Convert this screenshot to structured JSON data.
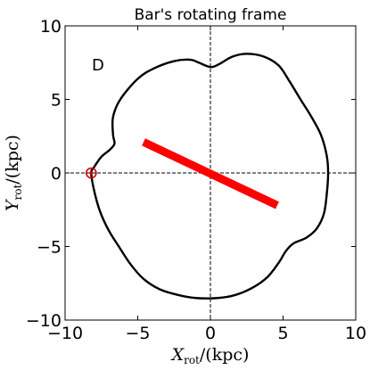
{
  "chart_data": {
    "type": "line",
    "title": "Bar's rotating frame",
    "panel_label": "D",
    "xlabel": {
      "symbol": "X",
      "subscript": "rot",
      "unit": "/(kpc)"
    },
    "ylabel": {
      "symbol": "Y",
      "subscript": "rot",
      "unit": "/(kpc)"
    },
    "xlim": [
      -10,
      10
    ],
    "ylim": [
      -10,
      10
    ],
    "xticks": [
      -10,
      -5,
      0,
      5,
      10
    ],
    "yticks": [
      -10,
      -5,
      0,
      5,
      10
    ],
    "xtick_labels": [
      "−10",
      "−5",
      "0",
      "5",
      "10"
    ],
    "ytick_labels": [
      "−10",
      "−5",
      "0",
      "5",
      "10"
    ],
    "reference_lines": {
      "x": 0,
      "y": 0,
      "style": "dashed"
    },
    "orbit": {
      "color": "#000000",
      "closed": true,
      "points": [
        [
          8.1,
          0.0
        ],
        [
          8.0,
          1.2
        ],
        [
          7.6,
          2.6
        ],
        [
          6.9,
          3.9
        ],
        [
          6.2,
          5.0
        ],
        [
          5.4,
          6.3
        ],
        [
          4.7,
          7.3
        ],
        [
          3.7,
          7.9
        ],
        [
          2.5,
          8.1
        ],
        [
          1.5,
          7.9
        ],
        [
          0.6,
          7.4
        ],
        [
          0.0,
          7.2
        ],
        [
          -0.8,
          7.5
        ],
        [
          -1.4,
          7.7
        ],
        [
          -2.5,
          7.6
        ],
        [
          -3.9,
          7.1
        ],
        [
          -5.0,
          6.4
        ],
        [
          -6.2,
          5.0
        ],
        [
          -6.7,
          3.8
        ],
        [
          -6.7,
          2.6
        ],
        [
          -6.6,
          2.0
        ],
        [
          -6.9,
          1.6
        ],
        [
          -7.5,
          1.1
        ],
        [
          -8.0,
          0.4
        ],
        [
          -8.2,
          0.0
        ],
        [
          -8.0,
          -1.2
        ],
        [
          -7.6,
          -2.6
        ],
        [
          -7.0,
          -3.9
        ],
        [
          -6.3,
          -5.0
        ],
        [
          -5.5,
          -6.2
        ],
        [
          -4.6,
          -7.2
        ],
        [
          -3.5,
          -7.9
        ],
        [
          -2.2,
          -8.3
        ],
        [
          -1.0,
          -8.5
        ],
        [
          0.5,
          -8.5
        ],
        [
          1.7,
          -8.3
        ],
        [
          2.9,
          -7.8
        ],
        [
          3.9,
          -7.1
        ],
        [
          4.7,
          -6.1
        ],
        [
          5.2,
          -5.3
        ],
        [
          5.7,
          -4.8
        ],
        [
          6.6,
          -4.4
        ],
        [
          7.3,
          -3.8
        ],
        [
          7.8,
          -2.8
        ],
        [
          8.0,
          -1.5
        ],
        [
          8.1,
          0.0
        ]
      ]
    },
    "bar": {
      "color": "#ff0000",
      "x": [
        -4.6,
        4.6
      ],
      "y": [
        2.1,
        -2.2
      ]
    },
    "marker": {
      "color": "#cc0000",
      "x": -8.2,
      "y": 0.0
    }
  }
}
